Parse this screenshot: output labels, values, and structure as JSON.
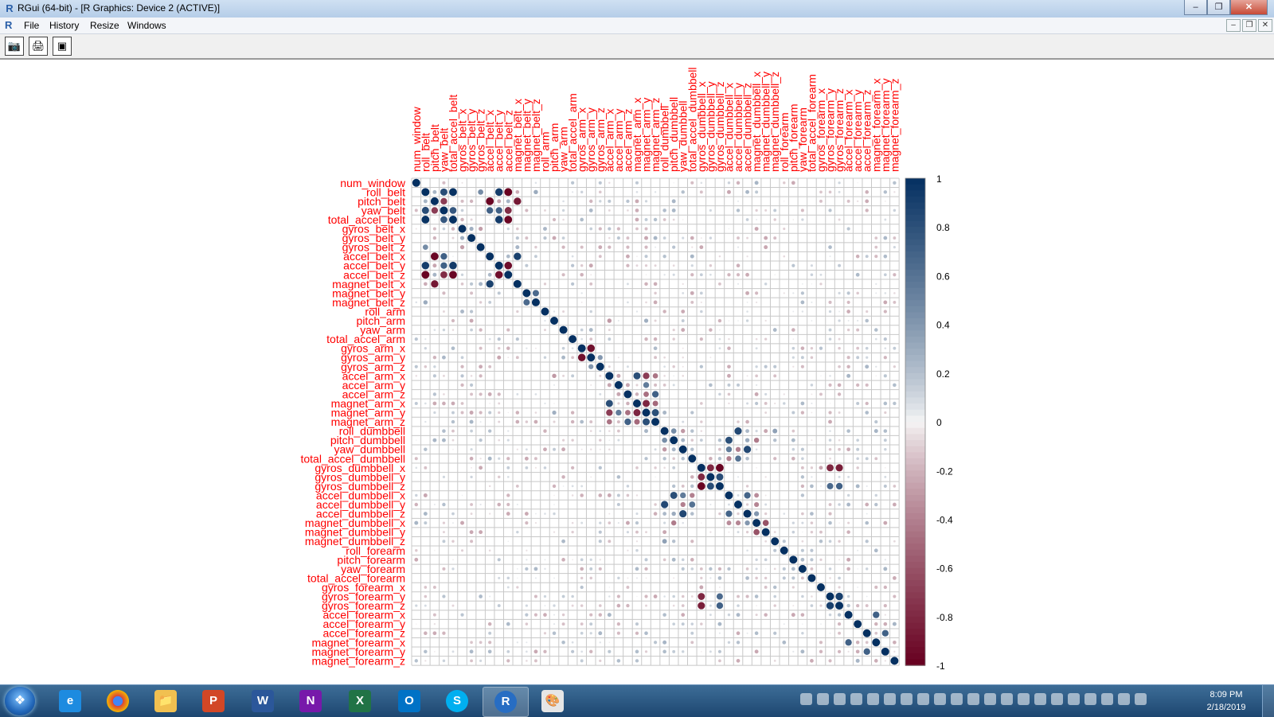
{
  "window": {
    "title": "RGui (64-bit) - [R Graphics: Device 2 (ACTIVE)]",
    "app_icon": "R-logo-icon"
  },
  "menu": {
    "items": [
      "File",
      "History",
      "Resize",
      "Windows"
    ]
  },
  "toolbar": {
    "icons": [
      "camera-icon",
      "printer-icon",
      "window-icon"
    ]
  },
  "chart_data": {
    "type": "heatmap",
    "method": "circle",
    "layout": "upper-triangle labels on top, row labels on left, color legend on right",
    "label_color": "#ff0000",
    "variables": [
      "num_window",
      "roll_belt",
      "pitch_belt",
      "yaw_belt",
      "total_accel_belt",
      "gyros_belt_x",
      "gyros_belt_y",
      "gyros_belt_z",
      "accel_belt_x",
      "accel_belt_y",
      "accel_belt_z",
      "magnet_belt_x",
      "magnet_belt_y",
      "magnet_belt_z",
      "roll_arm",
      "pitch_arm",
      "yaw_arm",
      "total_accel_arm",
      "gyros_arm_x",
      "gyros_arm_y",
      "gyros_arm_z",
      "accel_arm_x",
      "accel_arm_y",
      "accel_arm_z",
      "magnet_arm_x",
      "magnet_arm_y",
      "magnet_arm_z",
      "roll_dumbbell",
      "pitch_dumbbell",
      "yaw_dumbbell",
      "total_accel_dumbbell",
      "gyros_dumbbell_x",
      "gyros_dumbbell_y",
      "gyros_dumbbell_z",
      "accel_dumbbell_x",
      "accel_dumbbell_y",
      "accel_dumbbell_z",
      "magnet_dumbbell_x",
      "magnet_dumbbell_y",
      "magnet_dumbbell_z",
      "roll_forearm",
      "pitch_forearm",
      "yaw_forearm",
      "total_accel_forearm",
      "gyros_forearm_x",
      "gyros_forearm_y",
      "gyros_forearm_z",
      "accel_forearm_x",
      "accel_forearm_y",
      "accel_forearm_z",
      "magnet_forearm_x",
      "magnet_forearm_y",
      "magnet_forearm_z"
    ],
    "strong_correlations": [
      [
        "roll_belt",
        "yaw_belt",
        0.82
      ],
      [
        "roll_belt",
        "total_accel_belt",
        0.98
      ],
      [
        "roll_belt",
        "accel_belt_y",
        0.92
      ],
      [
        "roll_belt",
        "accel_belt_z",
        -0.99
      ],
      [
        "roll_belt",
        "gyros_belt_z",
        0.46
      ],
      [
        "roll_belt",
        "magnet_belt_x",
        -0.22
      ],
      [
        "roll_belt",
        "magnet_belt_z",
        0.3
      ],
      [
        "pitch_belt",
        "yaw_belt",
        -0.7
      ],
      [
        "pitch_belt",
        "accel_belt_x",
        -0.97
      ],
      [
        "pitch_belt",
        "magnet_belt_x",
        -0.88
      ],
      [
        "pitch_belt",
        "accel_belt_z",
        0.25
      ],
      [
        "yaw_belt",
        "total_accel_belt",
        0.76
      ],
      [
        "yaw_belt",
        "accel_belt_y",
        0.7
      ],
      [
        "yaw_belt",
        "accel_belt_z",
        -0.78
      ],
      [
        "yaw_belt",
        "accel_belt_x",
        0.7
      ],
      [
        "total_accel_belt",
        "accel_belt_y",
        0.93
      ],
      [
        "total_accel_belt",
        "accel_belt_z",
        -0.97
      ],
      [
        "gyros_belt_x",
        "gyros_belt_y",
        0.28
      ],
      [
        "gyros_belt_x",
        "gyros_belt_z",
        -0.28
      ],
      [
        "gyros_belt_z",
        "magnet_belt_x",
        0.25
      ],
      [
        "accel_belt_x",
        "magnet_belt_x",
        0.89
      ],
      [
        "accel_belt_y",
        "accel_belt_z",
        -0.93
      ],
      [
        "magnet_belt_y",
        "magnet_belt_z",
        0.65
      ],
      [
        "pitch_arm",
        "accel_arm_x",
        -0.3
      ],
      [
        "pitch_arm",
        "magnet_arm_y",
        0.28
      ],
      [
        "gyros_arm_x",
        "gyros_arm_y",
        -0.92
      ],
      [
        "gyros_arm_y",
        "gyros_arm_z",
        0.4
      ],
      [
        "accel_arm_x",
        "accel_arm_y",
        -0.25
      ],
      [
        "accel_arm_x",
        "magnet_arm_x",
        0.81
      ],
      [
        "accel_arm_x",
        "magnet_arm_y",
        -0.7
      ],
      [
        "accel_arm_x",
        "magnet_arm_z",
        -0.45
      ],
      [
        "accel_arm_y",
        "accel_arm_z",
        -0.25
      ],
      [
        "accel_arm_y",
        "magnet_arm_y",
        0.55
      ],
      [
        "accel_arm_z",
        "magnet_arm_y",
        -0.47
      ],
      [
        "accel_arm_z",
        "magnet_arm_z",
        0.7
      ],
      [
        "magnet_arm_x",
        "magnet_arm_y",
        -0.81
      ],
      [
        "magnet_arm_x",
        "magnet_arm_z",
        -0.5
      ],
      [
        "magnet_arm_y",
        "magnet_arm_z",
        0.81
      ],
      [
        "roll_dumbbell",
        "pitch_dumbbell",
        0.45
      ],
      [
        "roll_dumbbell",
        "yaw_dumbbell",
        -0.3
      ],
      [
        "roll_dumbbell",
        "accel_dumbbell_y",
        0.85
      ],
      [
        "roll_dumbbell",
        "magnet_dumbbell_z",
        0.35
      ],
      [
        "pitch_dumbbell",
        "yaw_dumbbell",
        0.25
      ],
      [
        "pitch_dumbbell",
        "accel_dumbbell_x",
        0.81
      ],
      [
        "pitch_dumbbell",
        "accel_dumbbell_z",
        0.3
      ],
      [
        "pitch_dumbbell",
        "magnet_dumbbell_x",
        -0.42
      ],
      [
        "yaw_dumbbell",
        "accel_dumbbell_y",
        -0.4
      ],
      [
        "yaw_dumbbell",
        "accel_dumbbell_z",
        0.85
      ],
      [
        "yaw_dumbbell",
        "accel_dumbbell_x",
        0.55
      ],
      [
        "total_accel_dumbbell",
        "accel_dumbbell_y",
        0.6
      ],
      [
        "total_accel_dumbbell",
        "accel_dumbbell_x",
        -0.4
      ],
      [
        "gyros_dumbbell_x",
        "gyros_dumbbell_y",
        -0.8
      ],
      [
        "gyros_dumbbell_x",
        "gyros_dumbbell_z",
        -0.98
      ],
      [
        "gyros_dumbbell_y",
        "gyros_dumbbell_z",
        0.82
      ],
      [
        "accel_dumbbell_x",
        "accel_dumbbell_z",
        0.68
      ],
      [
        "accel_dumbbell_x",
        "magnet_dumbbell_x",
        -0.35
      ],
      [
        "accel_dumbbell_y",
        "magnet_dumbbell_x",
        -0.38
      ],
      [
        "accel_dumbbell_z",
        "magnet_dumbbell_x",
        0.4
      ],
      [
        "magnet_dumbbell_x",
        "magnet_dumbbell_y",
        -0.6
      ],
      [
        "gyros_forearm_y",
        "gyros_forearm_z",
        0.9
      ],
      [
        "gyros_dumbbell_x",
        "gyros_forearm_y",
        -0.8
      ],
      [
        "gyros_dumbbell_x",
        "gyros_forearm_z",
        -0.85
      ],
      [
        "gyros_dumbbell_z",
        "gyros_forearm_y",
        0.65
      ],
      [
        "gyros_dumbbell_z",
        "gyros_forearm_z",
        0.7
      ],
      [
        "accel_forearm_x",
        "magnet_forearm_x",
        0.7
      ],
      [
        "accel_forearm_z",
        "magnet_forearm_y",
        0.7
      ],
      [
        "accel_forearm_y",
        "magnet_forearm_y",
        -0.22
      ],
      [
        "magnet_forearm_z",
        "accel_forearm_y",
        0.25
      ]
    ],
    "color_scale": {
      "min": -1,
      "max": 1,
      "low_color": "#67001f",
      "mid_color": "#f7f7f7",
      "high_color": "#053061"
    },
    "legend_ticks": [
      "1",
      "0.8",
      "0.6",
      "0.4",
      "0.2",
      "0",
      "-0.2",
      "-0.4",
      "-0.6",
      "-0.8",
      "-1"
    ],
    "grid": true
  },
  "taskbar": {
    "apps": [
      "internet-explorer-icon",
      "chrome-icon",
      "file-explorer-icon",
      "powerpoint-icon",
      "word-icon",
      "onenote-icon",
      "excel-icon",
      "outlook-icon",
      "skype-icon",
      "r-icon",
      "paint-icon"
    ],
    "tray_icons": [
      "help-icon",
      "printer-icon",
      "shield-icon",
      "chrome-icon",
      "headset-icon",
      "lock-icon",
      "camera-icon",
      "outlook-icon",
      "network-icon",
      "grid-icon",
      "nvidia-icon",
      "sync-icon",
      "cloud-icon",
      "tray-app-icon",
      "media-icon",
      "adobe-icon",
      "bluetooth-icon",
      "battery-icon",
      "signal-icon",
      "flag-icon",
      "volume-icon"
    ],
    "time": "8:09 PM",
    "date": "2/18/2019"
  }
}
